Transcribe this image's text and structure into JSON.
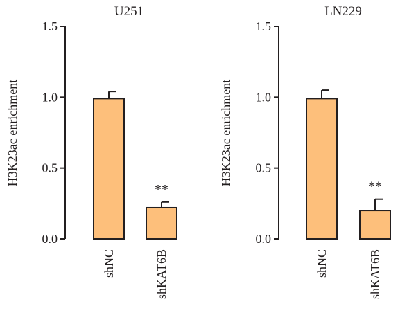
{
  "chart_data": [
    {
      "type": "bar",
      "title": "U251",
      "ylabel": "H3K23ac enrichment",
      "xlabel": "",
      "categories": [
        "shNC",
        "shKAT6B"
      ],
      "values": [
        0.99,
        0.22
      ],
      "errors": [
        0.05,
        0.04
      ],
      "annotations": [
        "",
        "**"
      ],
      "ylim": [
        0,
        1.5
      ],
      "yticks": [
        "0.0",
        "0.5",
        "1.0",
        "1.5"
      ],
      "bar_color": "#fdbf7b",
      "grid": false,
      "legend": "none"
    },
    {
      "type": "bar",
      "title": "LN229",
      "ylabel": "H3K23ac enrichment",
      "xlabel": "",
      "categories": [
        "shNC",
        "shKAT6B"
      ],
      "values": [
        0.99,
        0.2
      ],
      "errors": [
        0.06,
        0.08
      ],
      "annotations": [
        "",
        "**"
      ],
      "ylim": [
        0,
        1.5
      ],
      "yticks": [
        "0.0",
        "0.5",
        "1.0",
        "1.5"
      ],
      "bar_color": "#fdbf7b",
      "grid": false,
      "legend": "none"
    }
  ]
}
